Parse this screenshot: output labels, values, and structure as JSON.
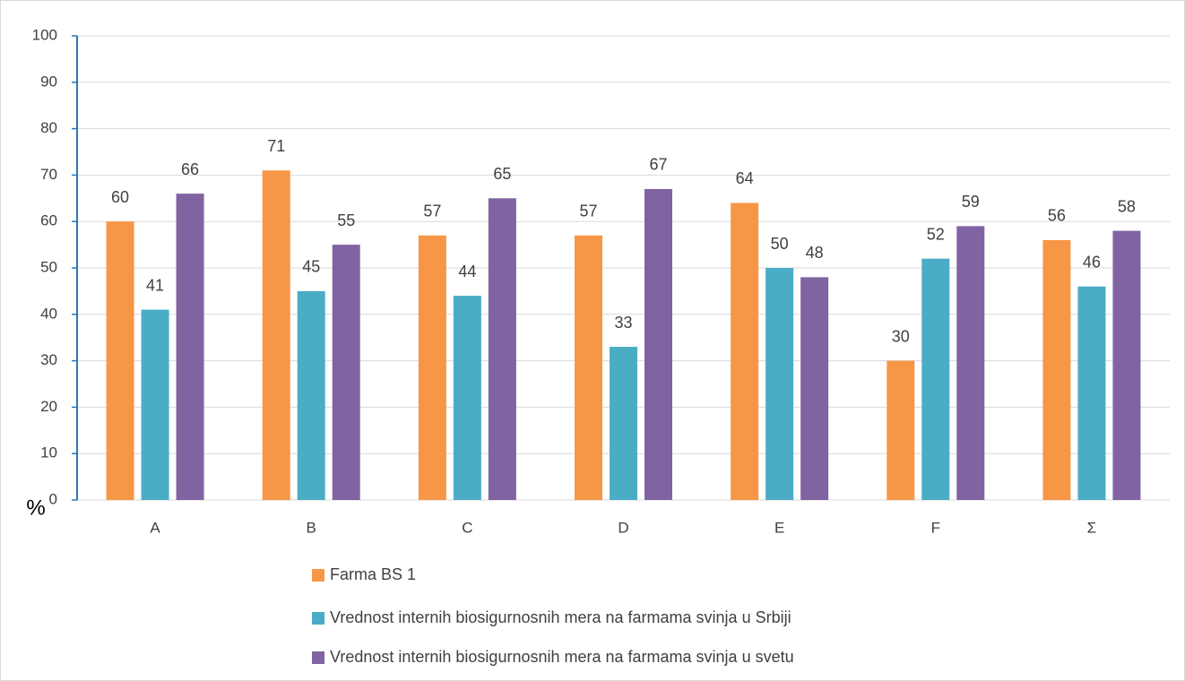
{
  "chart_data": {
    "type": "bar",
    "y_label": "%",
    "categories": [
      "A",
      "B",
      "C",
      "D",
      "E",
      "F",
      "Σ"
    ],
    "series": [
      {
        "name": "Farma BS 1",
        "color": "#f79646",
        "values": [
          60,
          71,
          57,
          57,
          64,
          30,
          56
        ]
      },
      {
        "name": "Vrednost internih biosigurnosnih mera na farmama svinja u Srbiji",
        "color": "#4bacc6",
        "values": [
          41,
          45,
          44,
          33,
          50,
          52,
          46
        ]
      },
      {
        "name": "Vrednost internih biosigurnosnih mera na farmama svinja u svetu",
        "color": "#8064a2",
        "values": [
          66,
          55,
          65,
          67,
          48,
          59,
          58
        ]
      }
    ],
    "ylim": [
      0,
      100
    ],
    "yticks": [
      0,
      10,
      20,
      30,
      40,
      50,
      60,
      70,
      80,
      90,
      100
    ],
    "grid": true,
    "legend": "bottom"
  }
}
